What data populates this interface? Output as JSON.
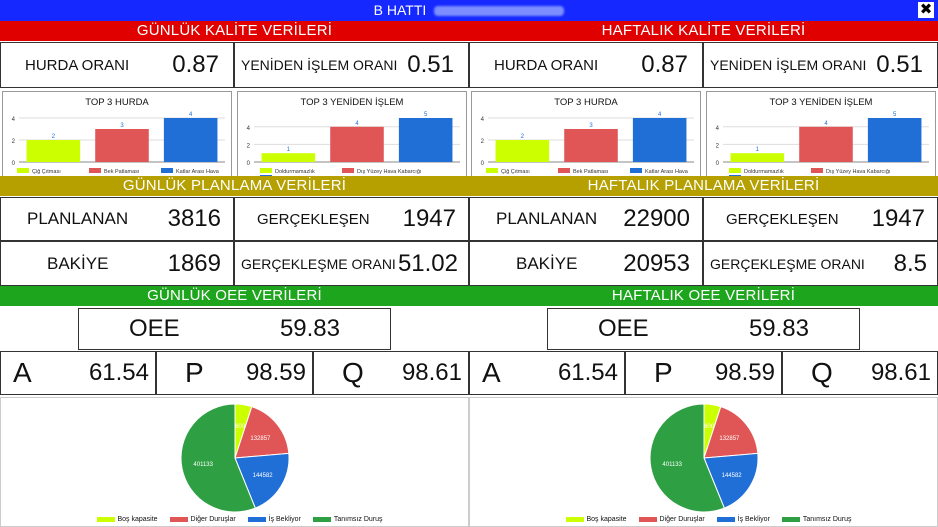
{
  "titlebar": {
    "title": "B HATTI"
  },
  "colors": {
    "red": "#e00000",
    "olive": "#b5a000",
    "green": "#1ea51e",
    "lime": "#ccff00",
    "salmon": "#e05555",
    "blue": "#1f6fd6",
    "pieGreen": "#2ea043"
  },
  "left": {
    "quality_band": "GÜNLÜK KALİTE VERİLERİ",
    "hurda_label": "HURDA ORANI",
    "hurda_value": "0.87",
    "yeniden_label": "YENİDEN İŞLEM ORANI",
    "yeniden_value": "0.51",
    "plan_band": "GÜNLÜK PLANLAMA VERİLERİ",
    "planlanan_label": "PLANLANAN",
    "planlanan_value": "3816",
    "gerceklesen_label": "GERÇEKLEŞEN",
    "gerceklesen_value": "1947",
    "bakiye_label": "BAKİYE",
    "bakiye_value": "1869",
    "oran_label": "GERÇEKLEŞME ORANI",
    "oran_value": "51.02",
    "oee_band": "GÜNLÜK OEE VERİLERİ",
    "oee_label": "OEE",
    "oee_value": "59.83",
    "a_label": "A",
    "a_value": "61.54",
    "p_label": "P",
    "p_value": "98.59",
    "q_label": "Q",
    "q_value": "98.61"
  },
  "right": {
    "quality_band": "HAFTALIK KALİTE VERİLERİ",
    "hurda_label": "HURDA ORANI",
    "hurda_value": "0.87",
    "yeniden_label": "YENİDEN İŞLEM ORANI",
    "yeniden_value": "0.51",
    "plan_band": "HAFTALIK PLANLAMA VERİLERİ",
    "planlanan_label": "PLANLANAN",
    "planlanan_value": "22900",
    "gerceklesen_label": "GERÇEKLEŞEN",
    "gerceklesen_value": "1947",
    "bakiye_label": "BAKİYE",
    "bakiye_value": "20953",
    "oran_label": "GERÇEKLEŞME ORANI",
    "oran_value": "8.5",
    "oee_band": "HAFTALIK OEE VERİLERİ",
    "oee_label": "OEE",
    "oee_value": "59.83",
    "a_label": "A",
    "a_value": "61.54",
    "p_label": "P",
    "p_value": "98.59",
    "q_label": "Q",
    "q_value": "98.61"
  },
  "chart_data": [
    {
      "type": "bar",
      "title": "TOP 3 HURDA",
      "categories": [
        "Çiğ Çıtması",
        "Bek Patlaması",
        "Katlar Arası Hava"
      ],
      "values": [
        2,
        3,
        4
      ],
      "ylim": [
        0,
        4
      ],
      "yticks": [
        0,
        2,
        4
      ],
      "colors": [
        "#ccff00",
        "#e05555",
        "#1f6fd6"
      ]
    },
    {
      "type": "bar",
      "title": "TOP 3 YENİDEN İŞLEM",
      "categories": [
        "Doldurmamazlık",
        "Dış Yüzey Hava Kabarcığı",
        "Dış yüzey hava sıkışması"
      ],
      "values": [
        1,
        4,
        5
      ],
      "ylim": [
        0,
        5
      ],
      "yticks": [
        0,
        2,
        4
      ],
      "colors": [
        "#ccff00",
        "#e05555",
        "#1f6fd6"
      ]
    },
    {
      "type": "bar",
      "title": "TOP 3 HURDA",
      "categories": [
        "Çiğ Çıtması",
        "Bek Patlaması",
        "Katlar Arası Hava"
      ],
      "values": [
        2,
        3,
        4
      ],
      "ylim": [
        0,
        4
      ],
      "yticks": [
        0,
        2,
        4
      ],
      "colors": [
        "#ccff00",
        "#e05555",
        "#1f6fd6"
      ]
    },
    {
      "type": "bar",
      "title": "TOP 3 YENİDEN İŞLEM",
      "categories": [
        "Doldurmamazlık",
        "Dış Yüzey Hava Kabarcığı",
        "Dış yüzey hava sıkışması"
      ],
      "values": [
        1,
        4,
        5
      ],
      "ylim": [
        0,
        5
      ],
      "yticks": [
        0,
        2,
        4
      ],
      "colors": [
        "#ccff00",
        "#e05555",
        "#1f6fd6"
      ]
    },
    {
      "type": "pie",
      "categories": [
        "Boş kapasite",
        "Diğer Duruşlar",
        "İş Bekliyor",
        "Tanımsız Duruş"
      ],
      "values": [
        36000,
        132857,
        144582,
        401133
      ],
      "labels": [
        "36000",
        "132857",
        "144582",
        "401133"
      ],
      "colors": [
        "#ccff00",
        "#e05555",
        "#1f6fd6",
        "#2ea043"
      ]
    },
    {
      "type": "pie",
      "categories": [
        "Boş kapasite",
        "Diğer Duruşlar",
        "İş Bekliyor",
        "Tanımsız Duruş"
      ],
      "values": [
        36000,
        132857,
        144582,
        401133
      ],
      "labels": [
        "36000",
        "132857",
        "144582",
        "401133"
      ],
      "colors": [
        "#ccff00",
        "#e05555",
        "#1f6fd6",
        "#2ea043"
      ]
    }
  ]
}
